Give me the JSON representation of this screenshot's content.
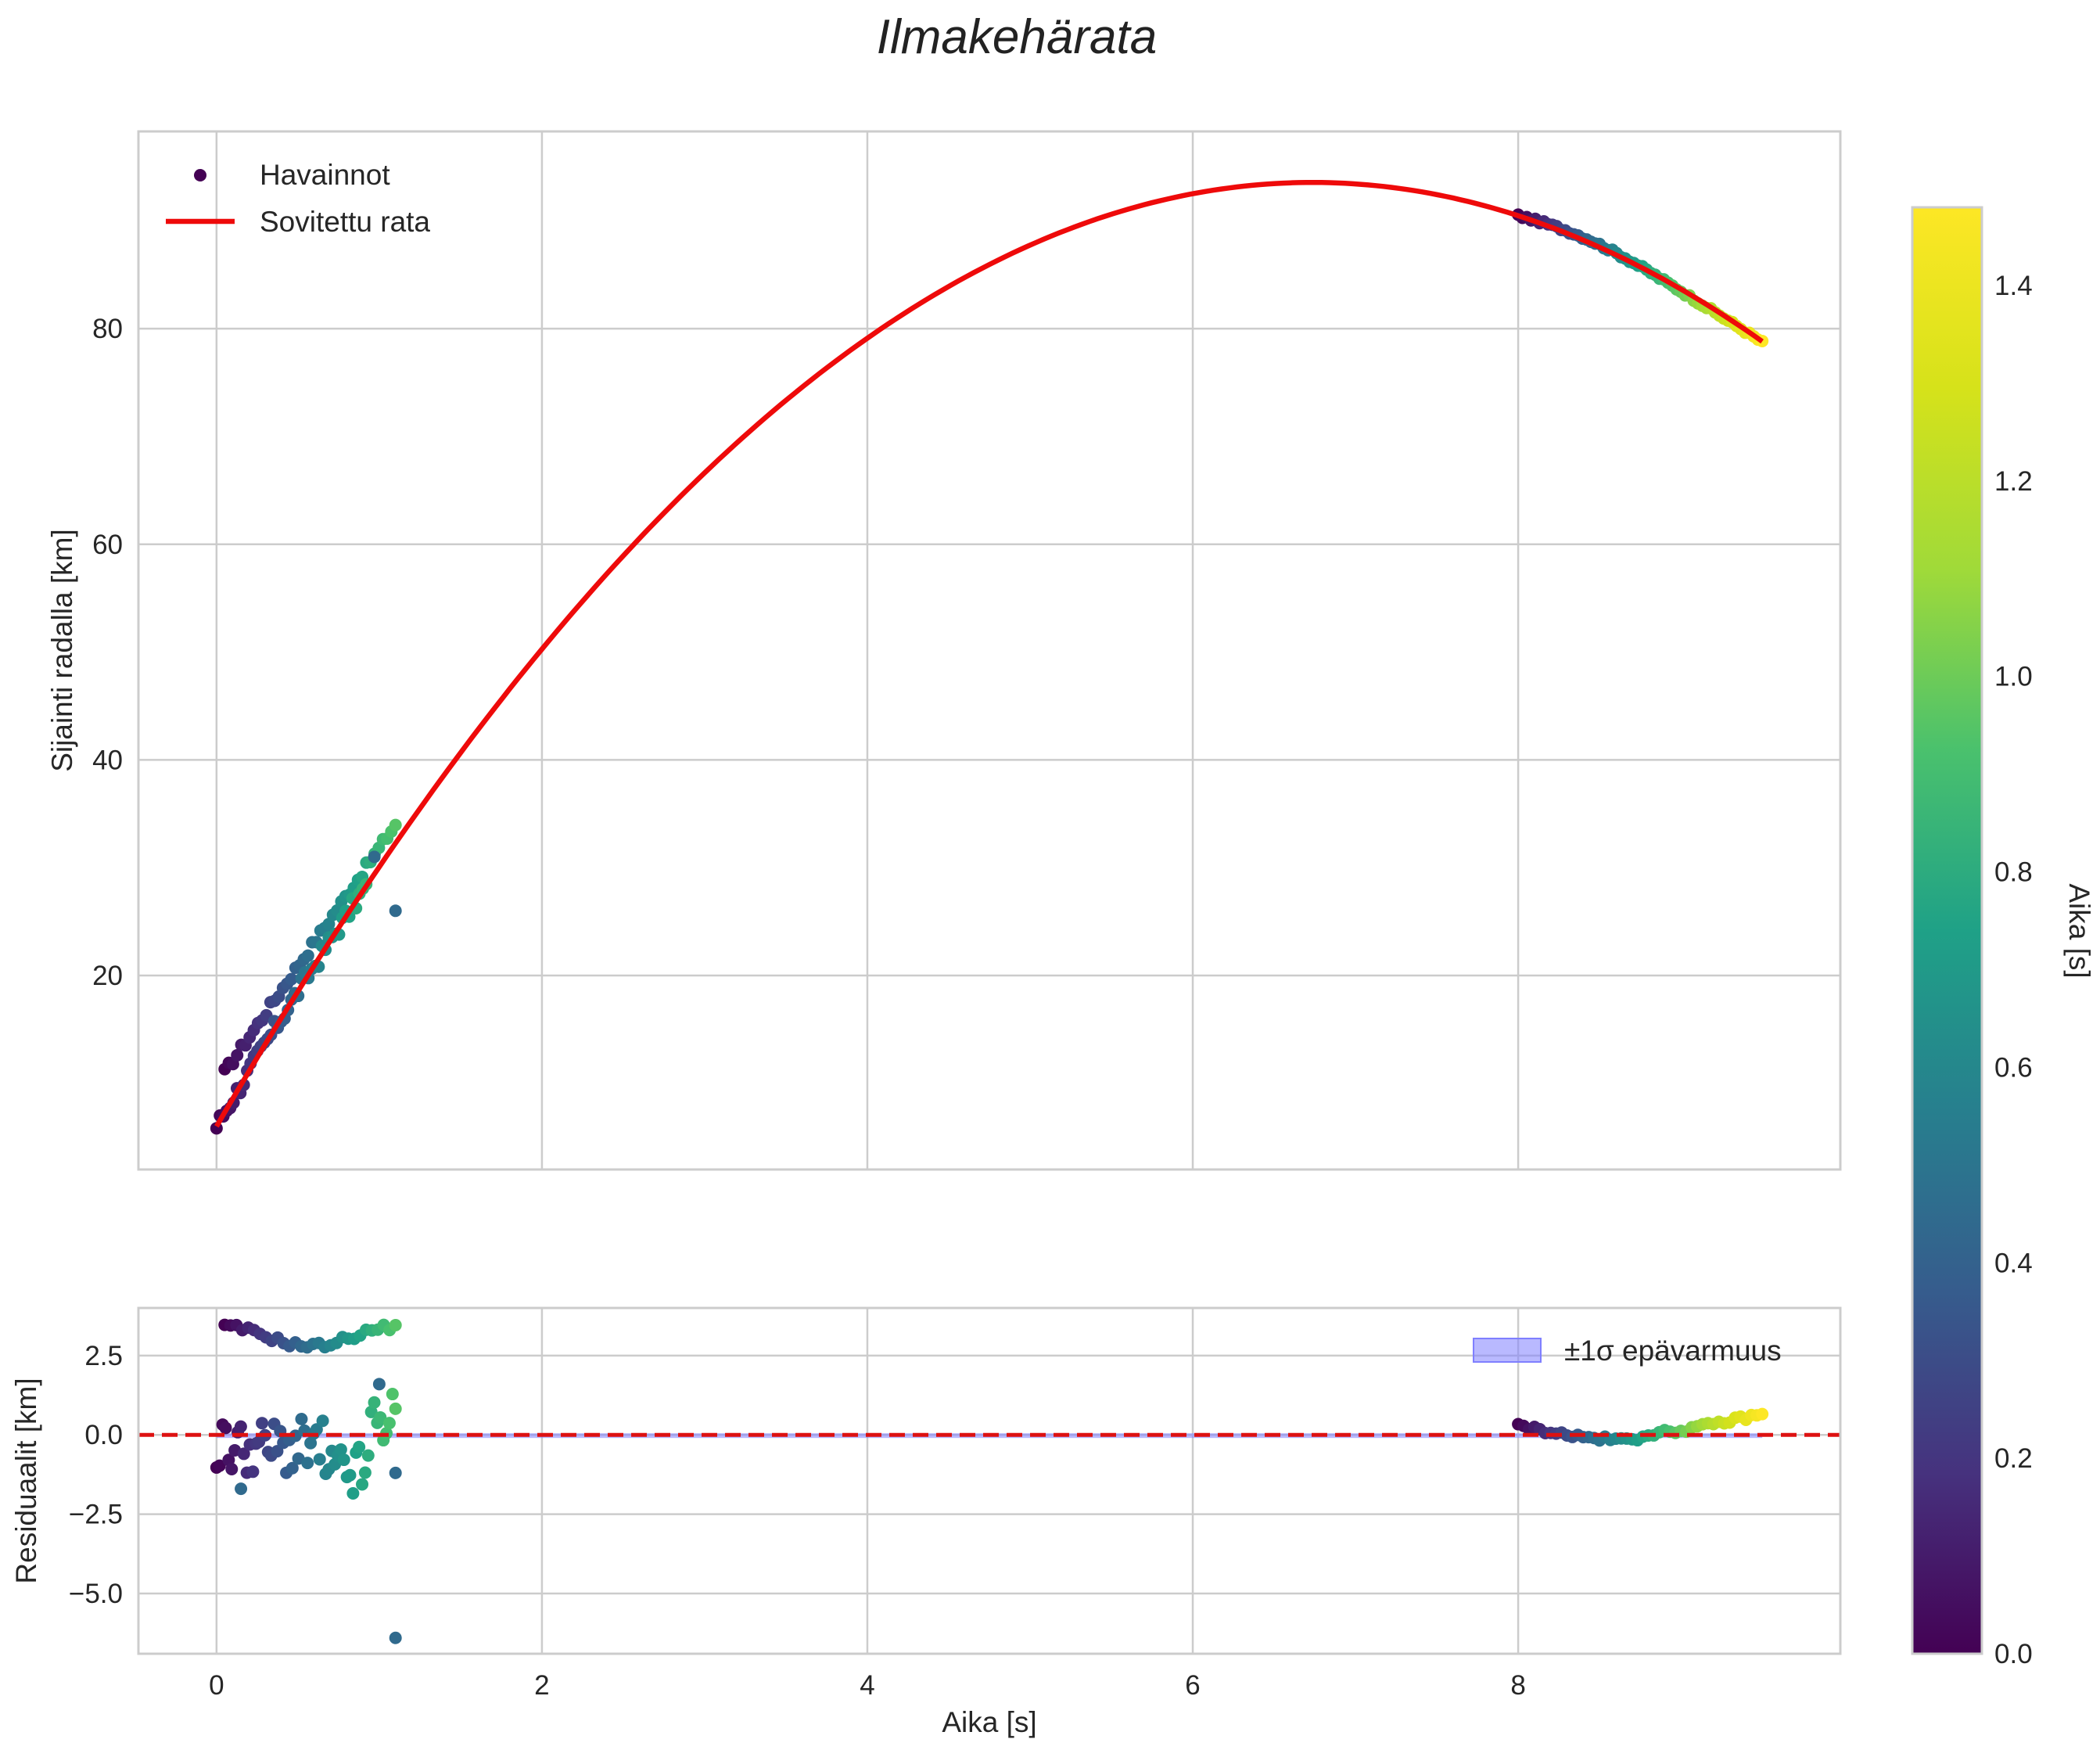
{
  "figure_title": "Ilmakehärata",
  "colors": {
    "fit_line": "#ee0a0a",
    "zero_line": "#dd1111",
    "band_fill": "#7f7fff",
    "grid": "#cccccc",
    "axis_frame": "#cccccc"
  },
  "chart_data": [
    {
      "type": "scatter",
      "panel": "main",
      "title": "Ilmakehärata",
      "xlabel": "",
      "ylabel": "Sijainti radalla [km]",
      "xlim": [
        -0.48,
        9.98
      ],
      "ylim": [
        2,
        98.3
      ],
      "xticks": [
        0,
        2,
        4,
        6,
        8
      ],
      "xtick_labels": [
        "0",
        "2",
        "4",
        "6",
        "8"
      ],
      "yticks": [
        20,
        40,
        60,
        80
      ],
      "ytick_labels": [
        "20",
        "40",
        "60",
        "80"
      ],
      "grid": true,
      "legend": {
        "position": "top-left",
        "entries": [
          "Havainnot",
          "Sovitettu rata"
        ]
      },
      "fit_curve": {
        "name": "Sovitettu rata",
        "model": "y = a + b*x + c*x^2",
        "a": 6.0,
        "b": 26.0,
        "c": -1.93,
        "x_range": [
          0,
          9.5
        ]
      },
      "series": [
        {
          "name": "Havainnot",
          "colormap": "viridis",
          "groups": [
            {
              "label": "early segment, upper track",
              "x_range": [
                0.05,
                1.1
              ],
              "y_range": [
                11.0,
                34.0
              ],
              "t_range": [
                0.0,
                0.95
              ]
            },
            {
              "label": "early segment, lower track",
              "x_range": [
                0.0,
                0.92
              ],
              "y_range": [
                6.5,
                29.0
              ],
              "t_range": [
                0.0,
                0.85
              ]
            },
            {
              "label": "late segment",
              "x_range": [
                8.0,
                9.5
              ],
              "y_range": [
                91.0,
                79.2
              ],
              "t_range": [
                0.0,
                1.48
              ]
            }
          ],
          "outliers": [
            {
              "x": 1.1,
              "y": 26.0
            },
            {
              "x": 0.97,
              "y": 31.0
            }
          ]
        }
      ]
    },
    {
      "type": "scatter",
      "panel": "residuals",
      "xlabel": "Aika [s]",
      "ylabel": "Residuaalit [km]",
      "xlim": [
        -0.48,
        9.98
      ],
      "ylim": [
        -6.9,
        4.0
      ],
      "xticks": [
        0,
        2,
        4,
        6,
        8
      ],
      "xtick_labels": [
        "0",
        "2",
        "4",
        "6",
        "8"
      ],
      "yticks": [
        2.5,
        0.0,
        -2.5,
        -5.0
      ],
      "ytick_labels": [
        "2.5",
        "0.0",
        "−2.5",
        "−5.0"
      ],
      "grid": true,
      "zero_line": 0.0,
      "band": {
        "name": "±1σ epävarmuus",
        "sigma": 0.05
      },
      "legend": {
        "position": "top-right",
        "entries": [
          "±1σ epävarmuus"
        ]
      },
      "series": [
        {
          "name": "Residuaalit",
          "colormap": "viridis",
          "groups": [
            {
              "label": "early upper",
              "x_range": [
                0.05,
                1.1
              ],
              "y_range": [
                2.7,
                3.5
              ],
              "t_range": [
                0.0,
                0.95
              ]
            },
            {
              "label": "early lower",
              "x_range": [
                0.0,
                1.1
              ],
              "y_range": [
                -2.2,
                0.7
              ],
              "t_range": [
                0.0,
                0.95
              ]
            },
            {
              "label": "late",
              "x_range": [
                8.0,
                9.5
              ],
              "y_range": [
                -0.3,
                0.5
              ],
              "t_range": [
                0.0,
                1.48
              ]
            }
          ],
          "outliers": [
            {
              "x": 1.1,
              "y": -6.4
            },
            {
              "x": 1.0,
              "y": 1.6
            },
            {
              "x": 1.1,
              "y": -1.2
            },
            {
              "x": 0.15,
              "y": -1.7
            }
          ]
        }
      ]
    },
    {
      "type": "colorbar",
      "label": "Aika [s]",
      "colormap": "viridis",
      "range": [
        0.0,
        1.48
      ],
      "ticks": [
        0.0,
        0.2,
        0.4,
        0.6,
        0.8,
        1.0,
        1.2,
        1.4
      ],
      "tick_labels": [
        "0.0",
        "0.2",
        "0.4",
        "0.6",
        "0.8",
        "1.0",
        "1.2",
        "1.4"
      ]
    }
  ]
}
